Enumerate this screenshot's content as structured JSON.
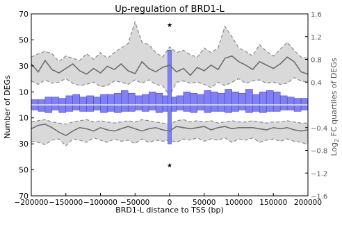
{
  "chart_data": {
    "type": "bar",
    "title": "Up-regulation of BRD1-L",
    "xlabel": "BRD1-L distance to TSS (bp)",
    "ylabel_left": "Number of DEGs",
    "ylabel_right_prefix": "Log",
    "ylabel_right_sub": "2",
    "ylabel_right_suffix": " FC quartiles of DEGs",
    "xlim": [
      -200000,
      200000
    ],
    "x_ticks": [
      -200000,
      -150000,
      -100000,
      -50000,
      0,
      50000,
      100000,
      150000,
      200000
    ],
    "x_tick_labels": [
      "−200000",
      "−150000",
      "−100000",
      "−50000",
      "0",
      "50000",
      "100000",
      "150000",
      "200000"
    ],
    "left_ticks": [
      {
        "label": "70",
        "signed": 70
      },
      {
        "label": "50",
        "signed": 50
      },
      {
        "label": "30",
        "signed": 30
      },
      {
        "label": "10",
        "signed": 10
      },
      {
        "label": "10",
        "signed": -10
      },
      {
        "label": "30",
        "signed": -30
      },
      {
        "label": "50",
        "signed": -50
      },
      {
        "label": "70",
        "signed": -70
      }
    ],
    "left_range": [
      -70,
      70
    ],
    "right_ticks": [
      {
        "label": "1.6",
        "value": 1.6
      },
      {
        "label": "1.2",
        "value": 1.2
      },
      {
        "label": "0.8",
        "value": 0.8
      },
      {
        "label": "0.4",
        "value": 0.4
      },
      {
        "label": "−0.4",
        "value": -0.4
      },
      {
        "label": "−0.8",
        "value": -0.8
      },
      {
        "label": "−1.2",
        "value": -1.2
      },
      {
        "label": "−1.6",
        "value": -1.6
      }
    ],
    "right_range": [
      -1.6,
      1.6
    ],
    "bin_centers": [
      -195000,
      -185000,
      -175000,
      -165000,
      -155000,
      -145000,
      -135000,
      -125000,
      -115000,
      -105000,
      -95000,
      -85000,
      -75000,
      -65000,
      -55000,
      -45000,
      -35000,
      -25000,
      -15000,
      -5000,
      5000,
      15000,
      25000,
      35000,
      45000,
      55000,
      65000,
      75000,
      85000,
      95000,
      105000,
      115000,
      125000,
      135000,
      145000,
      155000,
      165000,
      175000,
      185000,
      195000
    ],
    "series": [
      {
        "name": "",
        "values_up": [
          4,
          4,
          6,
          6,
          5,
          7,
          8,
          6,
          7,
          6,
          8,
          8,
          9,
          11,
          9,
          7,
          8,
          10,
          9,
          7,
          6,
          7,
          10,
          9,
          8,
          11,
          10,
          9,
          12,
          10,
          9,
          12,
          8,
          10,
          11,
          10,
          7,
          6,
          5,
          5
        ],
        "values_down": [
          -4,
          -5,
          -6,
          -4,
          -6,
          -5,
          -4,
          -5,
          -5,
          -4,
          -6,
          -5,
          -6,
          -5,
          -5,
          -4,
          -5,
          -4,
          -6,
          -5,
          -5,
          -4,
          -5,
          -6,
          -4,
          -6,
          -5,
          -5,
          -6,
          -5,
          -4,
          -6,
          -5,
          -6,
          -5,
          -5,
          -4,
          -4,
          -5,
          -4
        ]
      }
    ],
    "tss_bar": {
      "x": 0,
      "up": 42,
      "down": -30
    },
    "significance_markers": [
      {
        "symbol": "★",
        "x": 0,
        "y": 62
      },
      {
        "symbol": "★",
        "x": 0,
        "y": -46
      }
    ],
    "quartile_lines": {
      "x": [
        -200000,
        -190000,
        -180000,
        -170000,
        -160000,
        -150000,
        -140000,
        -130000,
        -120000,
        -110000,
        -100000,
        -90000,
        -80000,
        -70000,
        -60000,
        -50000,
        -40000,
        -30000,
        -20000,
        -10000,
        0,
        10000,
        20000,
        30000,
        40000,
        50000,
        60000,
        70000,
        80000,
        90000,
        100000,
        110000,
        120000,
        130000,
        140000,
        150000,
        160000,
        170000,
        180000,
        190000,
        200000
      ],
      "upper_median": [
        0.72,
        0.58,
        0.78,
        0.62,
        0.56,
        0.64,
        0.72,
        0.6,
        0.54,
        0.64,
        0.56,
        0.68,
        0.62,
        0.72,
        0.6,
        0.55,
        0.76,
        0.64,
        0.58,
        0.66,
        0.7,
        0.58,
        0.64,
        0.52,
        0.66,
        0.6,
        0.7,
        0.62,
        0.82,
        0.86,
        0.76,
        0.7,
        0.62,
        0.76,
        0.7,
        0.64,
        0.72,
        0.84,
        0.76,
        0.58,
        0.54
      ],
      "upper_q1": [
        0.42,
        0.36,
        0.44,
        0.38,
        0.4,
        0.46,
        0.38,
        0.34,
        0.36,
        0.4,
        0.32,
        0.34,
        0.42,
        0.4,
        0.36,
        0.44,
        0.38,
        0.44,
        0.36,
        0.34,
        0.16,
        0.4,
        0.42,
        0.38,
        0.4,
        0.36,
        0.3,
        0.4,
        0.34,
        0.4,
        0.46,
        0.38,
        0.42,
        0.44,
        0.38,
        0.4,
        0.36,
        0.38,
        0.48,
        0.42,
        0.4
      ],
      "upper_q3": [
        0.84,
        0.9,
        0.94,
        0.9,
        0.76,
        0.86,
        0.82,
        0.78,
        0.9,
        0.8,
        0.92,
        0.82,
        0.92,
        1.0,
        1.08,
        1.46,
        1.1,
        1.06,
        0.92,
        0.84,
        1.02,
        0.92,
        0.96,
        0.88,
        0.84,
        1.0,
        0.92,
        1.0,
        1.38,
        1.2,
        1.0,
        0.94,
        0.86,
        1.06,
        0.94,
        0.86,
        0.98,
        1.1,
        0.96,
        0.84,
        0.82
      ],
      "lower_median": [
        -0.42,
        -0.36,
        -0.34,
        -0.4,
        -0.48,
        -0.54,
        -0.46,
        -0.4,
        -0.42,
        -0.46,
        -0.4,
        -0.44,
        -0.46,
        -0.42,
        -0.38,
        -0.42,
        -0.46,
        -0.42,
        -0.4,
        -0.44,
        -0.46,
        -0.38,
        -0.4,
        -0.42,
        -0.4,
        -0.38,
        -0.44,
        -0.4,
        -0.38,
        -0.42,
        -0.4,
        -0.4,
        -0.4,
        -0.42,
        -0.44,
        -0.4,
        -0.42,
        -0.4,
        -0.44,
        -0.46,
        -0.44
      ],
      "lower_q1": [
        -0.3,
        -0.28,
        -0.26,
        -0.3,
        -0.32,
        -0.34,
        -0.3,
        -0.28,
        -0.26,
        -0.3,
        -0.28,
        -0.3,
        -0.32,
        -0.3,
        -0.28,
        -0.3,
        -0.26,
        -0.28,
        -0.3,
        -0.32,
        -0.34,
        -0.28,
        -0.26,
        -0.3,
        -0.28,
        -0.3,
        -0.28,
        -0.32,
        -0.3,
        -0.28,
        -0.3,
        -0.3,
        -0.28,
        -0.3,
        -0.32,
        -0.3,
        -0.3,
        -0.28,
        -0.3,
        -0.32,
        -0.32
      ],
      "lower_q3": [
        -0.64,
        -0.66,
        -0.7,
        -0.62,
        -0.6,
        -0.72,
        -0.6,
        -0.62,
        -0.66,
        -0.58,
        -0.62,
        -0.66,
        -0.6,
        -0.64,
        -0.62,
        -0.68,
        -0.6,
        -0.66,
        -0.62,
        -0.64,
        -0.62,
        -0.66,
        -0.6,
        -0.62,
        -0.58,
        -0.64,
        -0.6,
        -0.62,
        -0.58,
        -0.66,
        -0.6,
        -0.62,
        -0.58,
        -0.66,
        -0.62,
        -0.6,
        -0.64,
        -0.6,
        -0.64,
        -0.66,
        -0.7
      ]
    },
    "colors": {
      "bar_fill": "#8080f2",
      "bar_edge": "#3a3ad8",
      "median_line": "#6e6e6e",
      "band_fill": "#d9d9d9",
      "band_edge": "#8a8a8a",
      "axis": "#000000",
      "right_axis_text": "#555555"
    },
    "grid": false,
    "legend": "none"
  }
}
